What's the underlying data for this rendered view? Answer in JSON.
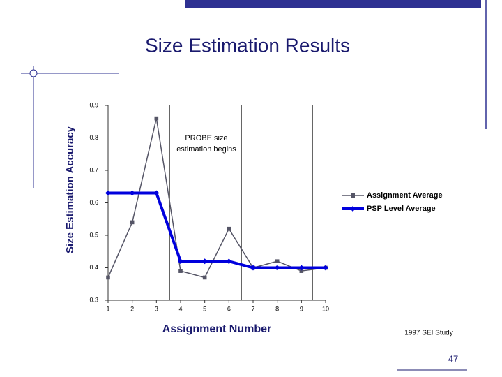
{
  "slide": {
    "title": "Size Estimation Results",
    "source": "1997 SEI Study",
    "page_number": "47"
  },
  "chart_data": {
    "type": "line",
    "annotation": "PROBE size estimation begins",
    "xlabel": "Assignment Number",
    "ylabel": "Size Estimation Accuracy",
    "x": [
      1,
      2,
      3,
      4,
      5,
      6,
      7,
      8,
      9,
      10
    ],
    "xlim": [
      1,
      10
    ],
    "xticks": [
      1,
      2,
      3,
      4,
      5,
      6,
      7,
      8,
      9,
      10
    ],
    "ylim": [
      0.3,
      0.9
    ],
    "yticks": [
      0.3,
      0.4,
      0.5,
      0.6,
      0.7,
      0.8,
      0.9
    ],
    "grid": false,
    "legend": "right",
    "series": [
      {
        "name": "Assignment Average",
        "color": "#555566",
        "marker": "square",
        "values": [
          0.37,
          0.54,
          0.86,
          0.39,
          0.37,
          0.52,
          0.4,
          0.42,
          0.39,
          0.4
        ]
      },
      {
        "name": "PSP Level Average",
        "color": "#0000dd",
        "marker": "diamond",
        "values": [
          0.63,
          0.63,
          0.63,
          0.42,
          0.42,
          0.42,
          0.4,
          0.4,
          0.4,
          0.4
        ]
      }
    ]
  }
}
